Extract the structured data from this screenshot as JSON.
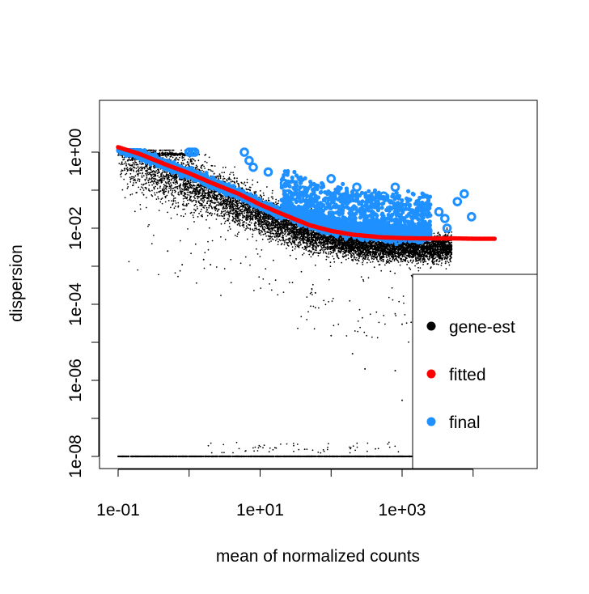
{
  "chart_data": {
    "type": "scatter",
    "title": "",
    "xlabel": "mean of normalized counts",
    "ylabel": "dispersion",
    "x_scale": "log10",
    "y_scale": "log10",
    "xlim": [
      0.07,
      20000
    ],
    "ylim": [
      5e-09,
      1.9
    ],
    "x_tick_values": [
      0.1,
      1,
      10,
      100,
      1000,
      10000
    ],
    "x_tick_labels": [
      "1e-01",
      "",
      "1e+01",
      "",
      "1e+03",
      ""
    ],
    "y_tick_values": [
      1e-08,
      1e-07,
      1e-06,
      1e-05,
      0.0001,
      0.001,
      0.01,
      0.1,
      1
    ],
    "y_tick_labels": [
      "1e-08",
      "",
      "1e-06",
      "",
      "1e-04",
      "",
      "1e-02",
      "",
      "1e+00"
    ],
    "legend": {
      "position": "bottom-right",
      "entries": [
        {
          "label": "gene-est",
          "color": "#000000"
        },
        {
          "label": "fitted",
          "color": "#ff0000"
        },
        {
          "label": "final",
          "color": "#1e90ff"
        }
      ]
    },
    "series": [
      {
        "name": "gene-est",
        "color": "#000000",
        "description_points": [
          [
            0.1,
            1e-08
          ],
          [
            1500,
            1e-08
          ],
          [
            0.5,
            0.0025
          ],
          [
            0.8,
            0.0011
          ],
          [
            2.0,
            0.0011
          ],
          [
            1.6,
            0.0015
          ],
          [
            60,
            0.0002
          ],
          [
            100,
            1.5e-05
          ],
          [
            200,
            5e-06
          ],
          [
            300,
            2e-06
          ],
          [
            800,
            1.8e-06
          ],
          [
            1000,
            3e-07
          ],
          [
            1000,
            3e-05
          ],
          [
            3000,
            0.0001
          ],
          [
            5000,
            0.0001
          ]
        ]
      },
      {
        "name": "fitted",
        "color": "#ff0000",
        "x": [
          0.1,
          0.2,
          0.5,
          1,
          2,
          5,
          10,
          20,
          50,
          100,
          200,
          500,
          1000,
          2000,
          5000,
          10000,
          20000
        ],
        "y": [
          1.35,
          0.9,
          0.45,
          0.28,
          0.16,
          0.08,
          0.042,
          0.024,
          0.012,
          0.0085,
          0.0068,
          0.0058,
          0.0055,
          0.0054,
          0.0054,
          0.0053,
          0.0053
        ]
      },
      {
        "name": "final",
        "color": "#1e90ff",
        "outliers": [
          [
            1.0,
            1.0
          ],
          [
            1.1,
            1.0
          ],
          [
            1.2,
            1.0
          ],
          [
            6,
            1.0
          ],
          [
            7,
            0.6
          ],
          [
            8,
            0.4
          ],
          [
            13,
            0.3
          ],
          [
            22,
            0.15
          ],
          [
            25,
            0.08
          ],
          [
            30,
            0.07
          ],
          [
            40,
            0.1
          ],
          [
            45,
            0.06
          ],
          [
            100,
            0.2
          ],
          [
            180,
            0.06
          ],
          [
            230,
            0.12
          ],
          [
            400,
            0.07
          ],
          [
            550,
            0.07
          ],
          [
            800,
            0.12
          ],
          [
            1000,
            0.035
          ],
          [
            2200,
            0.035
          ],
          [
            3300,
            0.027
          ],
          [
            4000,
            0.018
          ],
          [
            4300,
            0.01
          ],
          [
            6000,
            0.05
          ],
          [
            7500,
            0.08
          ],
          [
            9500,
            0.02
          ]
        ]
      }
    ]
  }
}
